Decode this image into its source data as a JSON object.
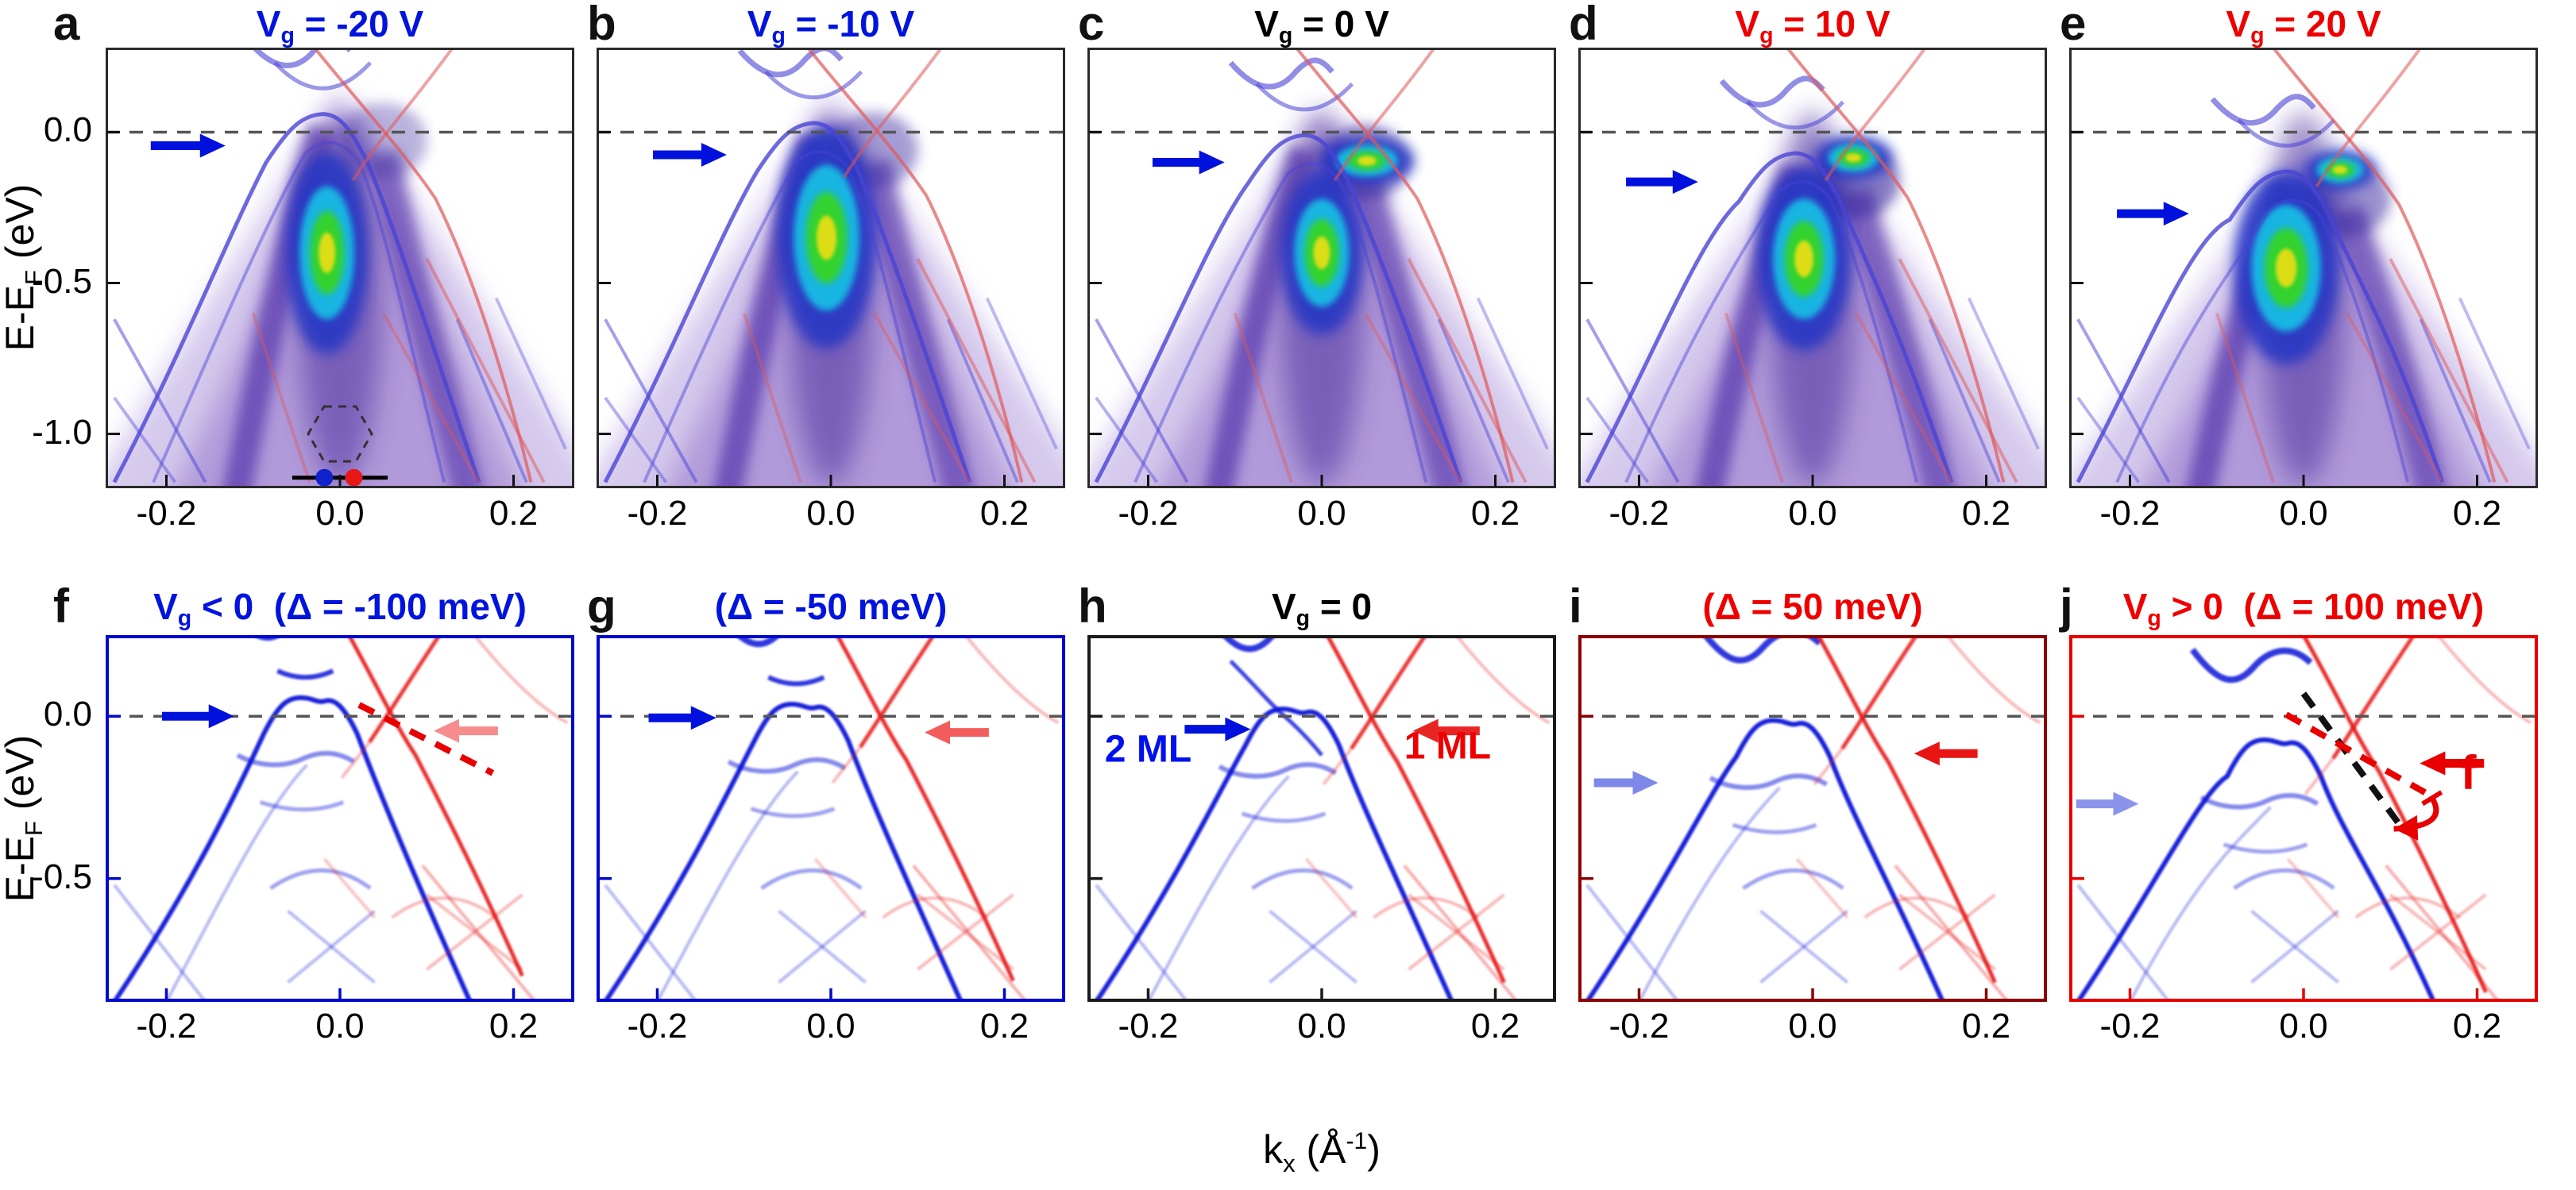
{
  "figure": {
    "y_axis_label": {
      "pre": "E-E",
      "sub": "F",
      "post": " (eV)"
    },
    "x_axis_label": {
      "pre": "k",
      "sub": "x",
      "mid": " (Å",
      "sup": "-1",
      "post": ")"
    }
  },
  "colors": {
    "blue_title": "#0014dd",
    "red_title": "#ee0000",
    "black_title": "#000000",
    "band_blue": "#0a18d8",
    "band_red": "#e81212",
    "fermi_dash": "#555555",
    "frame_top": "#2a2a2a",
    "frame_blue": "#0008cc",
    "frame_black": "#1a1a1a",
    "frame_dark_red": "#8b0000",
    "frame_red": "#e80000",
    "colormap_high": [
      "#e6de16",
      "#36d428",
      "#14c2e6",
      "#2334c4"
    ],
    "colormap_low": "#cbbce8"
  },
  "top_row": {
    "y_tick_labels": [
      "0.0",
      "-0.5",
      "-1.0"
    ],
    "x_tick_labels": [
      "-0.2",
      "0.0",
      "0.2"
    ],
    "panels": [
      {
        "letter": "a",
        "title": {
          "pre": "V",
          "sub": "g",
          "post": " = -20 V"
        },
        "title_color": "#0014dd",
        "arrow": {
          "color": "#0011dd",
          "k_from": -0.218,
          "k_to": -0.132,
          "E": -0.045
        },
        "inset": {
          "hex_E": -1.0,
          "line_E": -1.145,
          "dot_blue_k": -0.018,
          "dot_red_k": 0.016
        }
      },
      {
        "letter": "b",
        "title": {
          "pre": "V",
          "sub": "g",
          "post": " = -10 V"
        },
        "title_color": "#0014dd",
        "arrow": {
          "color": "#0011dd",
          "k_from": -0.205,
          "k_to": -0.12,
          "E": -0.075
        }
      },
      {
        "letter": "c",
        "title": {
          "pre": "V",
          "sub": "g",
          "post": " = 0 V"
        },
        "title_color": "#000000",
        "arrow": {
          "color": "#0011dd",
          "k_from": -0.195,
          "k_to": -0.112,
          "E": -0.1
        }
      },
      {
        "letter": "d",
        "title": {
          "pre": "V",
          "sub": "g",
          "post": " = 10 V"
        },
        "title_color": "#ee0000",
        "arrow": {
          "color": "#0011dd",
          "k_from": -0.215,
          "k_to": -0.132,
          "E": -0.165
        }
      },
      {
        "letter": "e",
        "title": {
          "pre": "V",
          "sub": "g",
          "post": " = 20 V"
        },
        "title_color": "#ee0000",
        "arrow": {
          "color": "#0011dd",
          "k_from": -0.215,
          "k_to": -0.132,
          "E": -0.27
        }
      }
    ]
  },
  "bottom_row": {
    "title_sep": "  ",
    "y_tick_labels": [
      "0.0",
      "-0.5"
    ],
    "x_tick_labels": [
      "-0.2",
      "0.0",
      "0.2"
    ],
    "panels": [
      {
        "letter": "f",
        "frame": "#0008cc",
        "title_vg": {
          "pre": "V",
          "sub": "g",
          "post": " < 0"
        },
        "title_delta": "(Δ = -100 meV)",
        "title_color": "#0014dd",
        "arrows": [
          {
            "color": "#0011dd",
            "k_from": -0.205,
            "k_to": -0.122,
            "E": 0.0
          },
          {
            "color": "#f58d8d",
            "k_from": 0.182,
            "k_to": 0.108,
            "E": -0.045
          }
        ],
        "dashed_lines": [
          {
            "color": "#e80000",
            "k1": 0.022,
            "E1": 0.035,
            "k2": 0.176,
            "E2": -0.175
          }
        ]
      },
      {
        "letter": "g",
        "frame": "#0008cc",
        "title_delta": "(Δ = -50 meV)",
        "title_color": "#0014dd",
        "arrows": [
          {
            "color": "#0011dd",
            "k_from": -0.21,
            "k_to": -0.132,
            "E": -0.005
          },
          {
            "color": "#f25c5c",
            "k_from": 0.182,
            "k_to": 0.108,
            "E": -0.05
          }
        ]
      },
      {
        "letter": "h",
        "frame": "#1a1a1a",
        "title_vg": {
          "pre": "V",
          "sub": "g",
          "post": " = 0"
        },
        "title_color": "#000000",
        "arrows": [
          {
            "color": "#0011dd",
            "k_from": -0.158,
            "k_to": -0.082,
            "E": -0.04
          },
          {
            "color": "#e82525",
            "k_from": 0.182,
            "k_to": 0.105,
            "E": -0.045
          }
        ],
        "text_labels": [
          {
            "text": "2 ML",
            "color": "#0010ee",
            "k": -0.2,
            "E": -0.14
          },
          {
            "text": "1 ML",
            "color": "#ee0000",
            "k": 0.145,
            "E": -0.13
          }
        ]
      },
      {
        "letter": "i",
        "frame": "#8b0000",
        "title_delta": "(Δ = 50 meV)",
        "title_color": "#ee0000",
        "arrows": [
          {
            "color": "#7d88e8",
            "k_from": -0.252,
            "k_to": -0.178,
            "E": -0.205
          },
          {
            "color": "#e81515",
            "k_from": 0.19,
            "k_to": 0.117,
            "E": -0.115
          }
        ]
      },
      {
        "letter": "j",
        "frame": "#e80000",
        "title_vg": {
          "pre": "V",
          "sub": "g",
          "post": " > 0"
        },
        "title_delta": "(Δ = 100 meV)",
        "title_color": "#ee0000",
        "arrows": [
          {
            "color": "#8a94ea",
            "k_from": -0.262,
            "k_to": -0.19,
            "E": -0.27
          },
          {
            "color": "#e80000",
            "k_from": 0.208,
            "k_to": 0.134,
            "E": -0.145
          }
        ],
        "dashed_lines": [
          {
            "color": "#111111",
            "k1": 0.0,
            "E1": 0.07,
            "k2": 0.115,
            "E2": -0.35
          },
          {
            "color": "#e80000",
            "k1": -0.02,
            "E1": 0.005,
            "k2": 0.14,
            "E2": -0.235
          }
        ],
        "angle": {
          "label": "f",
          "from": [
            0.148,
            -0.252
          ],
          "ctrl": [
            0.168,
            -0.34
          ],
          "to": [
            0.104,
            -0.347
          ],
          "label_k": 0.19,
          "label_E": -0.225
        }
      }
    ]
  },
  "chart_data": [
    {
      "panel": "a",
      "row": "top",
      "type": "heatmap",
      "title": "Vg = -20 V",
      "gate_voltage_V": -20,
      "xlabel": "kx (Å⁻¹)",
      "ylabel": "E-EF (eV)",
      "x_range": [
        -0.27,
        0.27
      ],
      "x_ticks": [
        -0.2,
        0.0,
        0.2
      ],
      "y_range": [
        -1.18,
        0.28
      ],
      "y_ticks": [
        0.0,
        -0.5,
        -1.0
      ],
      "colormap": "white-purple-blue-cyan-green-yellow ARPES intensity",
      "overlays": [
        "2 ML calculated bands (blue)",
        "1 ML calculated bands (red)",
        "Fermi level dashed line at E-EF = 0"
      ],
      "valence_apex_eV": 0.03,
      "intensity_max": {
        "k": -0.015,
        "E": -0.4
      },
      "annotations": [
        "blue arrow at E ≈ -0.05 eV",
        "dashed Brillouin-zone hexagon inset with blue and red dots on a horizontal cut line"
      ]
    },
    {
      "panel": "b",
      "row": "top",
      "type": "heatmap",
      "title": "Vg = -10 V",
      "gate_voltage_V": -10,
      "x_range": [
        -0.27,
        0.27
      ],
      "x_ticks": [
        -0.2,
        0.0,
        0.2
      ],
      "y_range": [
        -1.18,
        0.28
      ],
      "y_ticks": [
        0.0,
        -0.5,
        -1.0
      ],
      "valence_apex_eV": 0.0,
      "intensity_max": {
        "k": -0.005,
        "E": -0.35
      },
      "annotations": [
        "blue arrow at E ≈ -0.08 eV"
      ]
    },
    {
      "panel": "c",
      "row": "top",
      "type": "heatmap",
      "title": "Vg = 0 V",
      "gate_voltage_V": 0,
      "x_range": [
        -0.27,
        0.27
      ],
      "x_ticks": [
        -0.2,
        0.0,
        0.2
      ],
      "y_range": [
        -1.18,
        0.28
      ],
      "y_ticks": [
        0.0,
        -0.5,
        -1.0
      ],
      "valence_apex_eV": -0.04,
      "intensity_max": {
        "k": 0.0,
        "E": -0.4
      },
      "electron_pocket": {
        "k": 0.052,
        "E": -0.095
      },
      "annotations": [
        "blue arrow at E ≈ -0.10 eV"
      ]
    },
    {
      "panel": "d",
      "row": "top",
      "type": "heatmap",
      "title": "Vg = 10 V",
      "gate_voltage_V": 10,
      "x_range": [
        -0.27,
        0.27
      ],
      "x_ticks": [
        -0.2,
        0.0,
        0.2
      ],
      "y_range": [
        -1.18,
        0.28
      ],
      "y_ticks": [
        0.0,
        -0.5,
        -1.0
      ],
      "valence_apex_eV": -0.1,
      "intensity_max": {
        "k": -0.01,
        "E": -0.42
      },
      "electron_pocket": {
        "k": 0.047,
        "E": -0.085
      },
      "annotations": [
        "blue arrow at E ≈ -0.17 eV"
      ]
    },
    {
      "panel": "e",
      "row": "top",
      "type": "heatmap",
      "title": "Vg = 20 V",
      "gate_voltage_V": 20,
      "x_range": [
        -0.27,
        0.27
      ],
      "x_ticks": [
        -0.2,
        0.0,
        0.2
      ],
      "y_range": [
        -1.18,
        0.28
      ],
      "y_ticks": [
        0.0,
        -0.5,
        -1.0
      ],
      "valence_apex_eV": -0.16,
      "intensity_max": {
        "k": -0.02,
        "E": -0.45
      },
      "electron_pocket": {
        "k": 0.042,
        "E": -0.125
      },
      "annotations": [
        "blue arrow at E ≈ -0.27 eV"
      ]
    },
    {
      "panel": "f",
      "row": "bottom",
      "type": "simulated_spectral_map",
      "title": "Vg < 0 (Δ = -100 meV)",
      "delta_meV": -100,
      "x_range": [
        -0.27,
        0.27
      ],
      "x_ticks": [
        -0.2,
        0.0,
        0.2
      ],
      "y_range": [
        -0.88,
        0.25
      ],
      "y_ticks": [
        0.0,
        -0.5
      ],
      "series": [
        "2 ML bands (blue)",
        "1 ML bands (red)"
      ],
      "annotations": [
        "blue arrow at E ≈ 0",
        "pink arrow at E ≈ -0.05",
        "red dashed guide line along 1 ML branch"
      ]
    },
    {
      "panel": "g",
      "row": "bottom",
      "type": "simulated_spectral_map",
      "title": "(Δ = -50 meV)",
      "delta_meV": -50,
      "x_range": [
        -0.27,
        0.27
      ],
      "x_ticks": [
        -0.2,
        0.0,
        0.2
      ],
      "y_range": [
        -0.88,
        0.25
      ],
      "y_ticks": [
        0.0,
        -0.5
      ],
      "series": [
        "2 ML bands (blue)",
        "1 ML bands (red)"
      ],
      "annotations": [
        "blue arrow at E ≈ 0",
        "red arrow at E ≈ -0.05"
      ]
    },
    {
      "panel": "h",
      "row": "bottom",
      "type": "simulated_spectral_map",
      "title": "Vg = 0",
      "delta_meV": 0,
      "x_range": [
        -0.27,
        0.27
      ],
      "x_ticks": [
        -0.2,
        0.0,
        0.2
      ],
      "y_range": [
        -0.88,
        0.25
      ],
      "y_ticks": [
        0.0,
        -0.5
      ],
      "series": [
        "2 ML bands (blue, labeled 2 ML)",
        "1 ML bands (red, labeled 1 ML)"
      ],
      "annotations": [
        "blue arrow toward 2 ML crossing",
        "red arrow toward 1 ML crossing"
      ]
    },
    {
      "panel": "i",
      "row": "bottom",
      "type": "simulated_spectral_map",
      "title": "(Δ = 50 meV)",
      "delta_meV": 50,
      "x_range": [
        -0.27,
        0.27
      ],
      "x_ticks": [
        -0.2,
        0.0,
        0.2
      ],
      "y_range": [
        -0.88,
        0.25
      ],
      "y_ticks": [
        0.0,
        -0.5
      ],
      "series": [
        "2 ML bands (blue)",
        "1 ML bands (red)"
      ],
      "annotations": [
        "light-blue arrow at E ≈ -0.2",
        "red arrow at E ≈ -0.12"
      ]
    },
    {
      "panel": "j",
      "row": "bottom",
      "type": "simulated_spectral_map",
      "title": "Vg > 0 (Δ = 100 meV)",
      "delta_meV": 100,
      "x_range": [
        -0.27,
        0.27
      ],
      "x_ticks": [
        -0.2,
        0.0,
        0.2
      ],
      "y_range": [
        -0.88,
        0.25
      ],
      "y_ticks": [
        0.0,
        -0.5
      ],
      "series": [
        "2 ML bands (blue)",
        "1 ML bands (red)"
      ],
      "annotations": [
        "light-blue arrow at E ≈ -0.27",
        "red arrow at E ≈ -0.15",
        "black dashed and red dashed guide lines with curved arrow marking angle labeled f"
      ]
    }
  ]
}
